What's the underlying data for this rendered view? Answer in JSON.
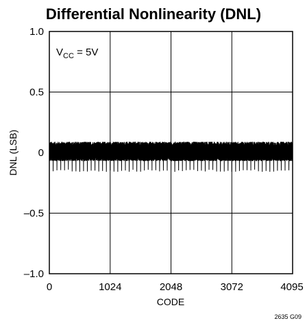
{
  "chart_data": {
    "type": "line",
    "title": "Differential Nonlinearity (DNL)",
    "xlabel": "CODE",
    "ylabel": "DNL (LSB)",
    "xlim": [
      0,
      4095
    ],
    "ylim": [
      -1.0,
      1.0
    ],
    "x_ticks": [
      0,
      1024,
      2048,
      3072,
      4095
    ],
    "x_tick_labels": [
      "0",
      "1024",
      "2048",
      "3072",
      "4095"
    ],
    "y_ticks": [
      1.0,
      0.5,
      0,
      -0.5,
      -1.0
    ],
    "y_tick_labels": [
      "1.0",
      "0.5",
      "0",
      "–0.5",
      "–1.0"
    ],
    "grid": true,
    "annotation": {
      "prefix": "V",
      "subscript": "CC",
      "suffix": " = 5V"
    },
    "series": [
      {
        "values_summary": "DNL noise band across all codes",
        "band_max": 0.09,
        "band_min": -0.07,
        "periodic_spike_min": -0.16,
        "periodic_spike_interval_codes": 64
      }
    ],
    "line_color": "#000000",
    "figure_code": "2635 G09"
  }
}
